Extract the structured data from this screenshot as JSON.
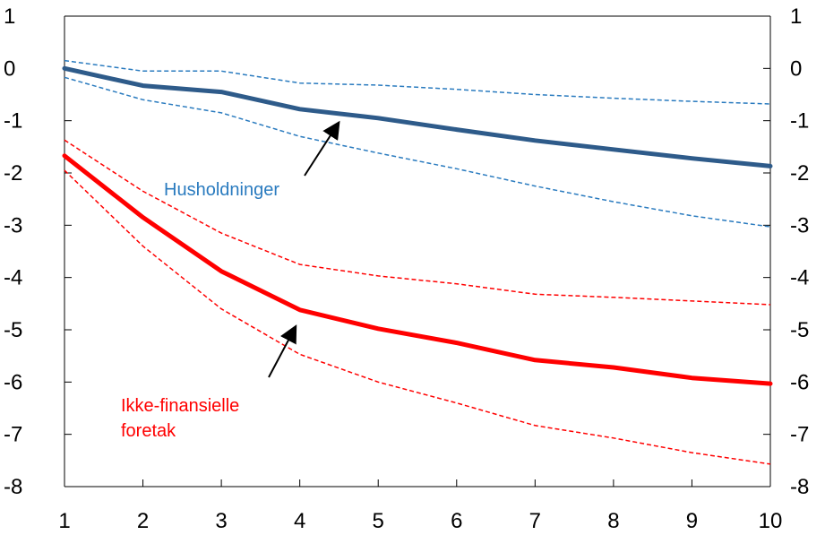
{
  "chart_data": {
    "type": "line",
    "x": [
      1,
      2,
      3,
      4,
      5,
      6,
      7,
      8,
      9,
      10
    ],
    "xlim": [
      1,
      10
    ],
    "ylim": [
      -8,
      1
    ],
    "y_ticks": [
      1,
      0,
      -1,
      -2,
      -3,
      -4,
      -5,
      -6,
      -7,
      -8
    ],
    "grid": false,
    "series": [
      {
        "name": "Husholdninger",
        "color": "#2e5b8a",
        "style": "solid",
        "values": [
          0.0,
          -0.33,
          -0.45,
          -0.78,
          -0.95,
          -1.17,
          -1.38,
          -1.55,
          -1.72,
          -1.87
        ]
      },
      {
        "color": "#2a7bbf",
        "style": "dashed",
        "values": [
          0.15,
          -0.05,
          -0.05,
          -0.28,
          -0.32,
          -0.4,
          -0.5,
          -0.57,
          -0.63,
          -0.68
        ]
      },
      {
        "color": "#2a7bbf",
        "style": "dashed",
        "values": [
          -0.17,
          -0.6,
          -0.85,
          -1.3,
          -1.62,
          -1.92,
          -2.25,
          -2.55,
          -2.82,
          -3.03
        ]
      },
      {
        "name": "Ikke-finansielle foretak",
        "color": "#ff0000",
        "style": "solid",
        "values": [
          -1.67,
          -2.85,
          -3.88,
          -4.62,
          -4.98,
          -5.25,
          -5.58,
          -5.72,
          -5.92,
          -6.03
        ]
      },
      {
        "color": "#ff0000",
        "style": "dashed",
        "values": [
          -1.37,
          -2.35,
          -3.15,
          -3.75,
          -3.97,
          -4.12,
          -4.32,
          -4.38,
          -4.45,
          -4.52
        ]
      },
      {
        "color": "#ff0000",
        "style": "dashed",
        "values": [
          -1.95,
          -3.4,
          -4.6,
          -5.47,
          -6.0,
          -6.4,
          -6.83,
          -7.07,
          -7.35,
          -7.57
        ]
      }
    ],
    "annotations": [
      {
        "lines": [
          "Husholdninger"
        ],
        "color": "#2a7bbf",
        "arrow_to": [
          4.5,
          -1.03
        ]
      },
      {
        "lines": [
          "Ikke-finansielle",
          "foretak"
        ],
        "color": "#ff0000",
        "arrow_to": [
          3.95,
          -4.93
        ]
      }
    ]
  }
}
